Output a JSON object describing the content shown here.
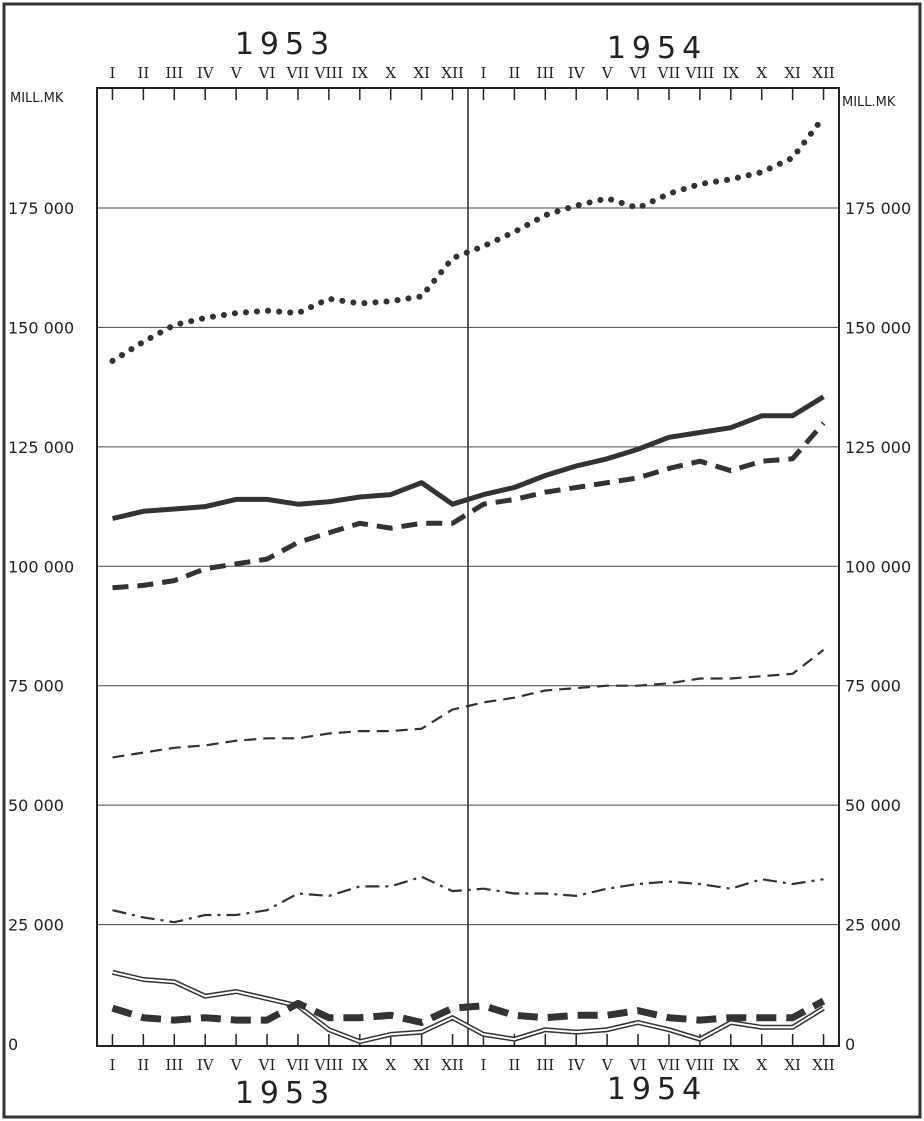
{
  "chart_data": {
    "type": "line",
    "unit_label_left": "MILL.MK",
    "unit_label_right": "MILL.MK",
    "years": [
      "1953",
      "1954"
    ],
    "months": [
      "I",
      "II",
      "III",
      "IV",
      "V",
      "VI",
      "VII",
      "VIII",
      "IX",
      "X",
      "XI",
      "XII",
      "I",
      "II",
      "III",
      "IV",
      "V",
      "VI",
      "VII",
      "VIII",
      "IX",
      "X",
      "XI",
      "XII"
    ],
    "ylim": [
      0,
      195000
    ],
    "yticks": [
      0,
      25000,
      50000,
      75000,
      100000,
      125000,
      150000,
      175000
    ],
    "ytick_labels": [
      "0",
      "25 000",
      "50 000",
      "75 000",
      "100 000",
      "125 000",
      "150 000",
      "175 000"
    ],
    "grid": "horizontal",
    "series": [
      {
        "style": "dotted-heavy",
        "values": [
          143000,
          147000,
          150500,
          152000,
          153000,
          153500,
          153000,
          156000,
          155000,
          155500,
          156500,
          164500,
          167000,
          170000,
          173500,
          175500,
          177000,
          175000,
          178000,
          180000,
          181000,
          182500,
          185500,
          194000
        ]
      },
      {
        "style": "solid-heavy",
        "values": [
          110000,
          111500,
          112000,
          112500,
          114000,
          114000,
          113000,
          113500,
          114500,
          115000,
          117500,
          113000,
          115000,
          116500,
          119000,
          121000,
          122500,
          124500,
          127000,
          128000,
          129000,
          131500,
          131500,
          135500
        ]
      },
      {
        "style": "dashed-heavy",
        "values": [
          95500,
          96000,
          97000,
          99500,
          100500,
          101500,
          105000,
          107000,
          109000,
          108000,
          109000,
          109000,
          113000,
          114000,
          115500,
          116500,
          117500,
          118500,
          120500,
          122000,
          120000,
          122000,
          122500,
          130000
        ]
      },
      {
        "style": "dashed-thin",
        "values": [
          60000,
          61000,
          62000,
          62500,
          63500,
          64000,
          64000,
          65000,
          65500,
          65500,
          66000,
          70000,
          71500,
          72500,
          74000,
          74500,
          75000,
          75000,
          75500,
          76500,
          76500,
          77000,
          77500,
          82500
        ]
      },
      {
        "style": "dash-dot",
        "values": [
          28000,
          26500,
          25500,
          27000,
          27000,
          28000,
          31500,
          31000,
          33000,
          33000,
          35000,
          32000,
          32500,
          31500,
          31500,
          31000,
          32500,
          33500,
          34000,
          33500,
          32500,
          34500,
          33500,
          34500
        ]
      },
      {
        "style": "double-line",
        "values": [
          15000,
          13500,
          13000,
          10000,
          11000,
          9500,
          8000,
          3000,
          500,
          2000,
          2500,
          5500,
          2000,
          1000,
          3000,
          2500,
          3000,
          4500,
          3000,
          1000,
          4500,
          3500,
          3500,
          7500
        ]
      },
      {
        "style": "dashed-extra-heavy",
        "values": [
          7500,
          5500,
          5000,
          5500,
          5000,
          5000,
          8500,
          5500,
          5500,
          6000,
          4500,
          7500,
          8000,
          6000,
          5500,
          6000,
          6000,
          7000,
          5500,
          5000,
          5500,
          5500,
          5500,
          9000
        ]
      }
    ]
  }
}
